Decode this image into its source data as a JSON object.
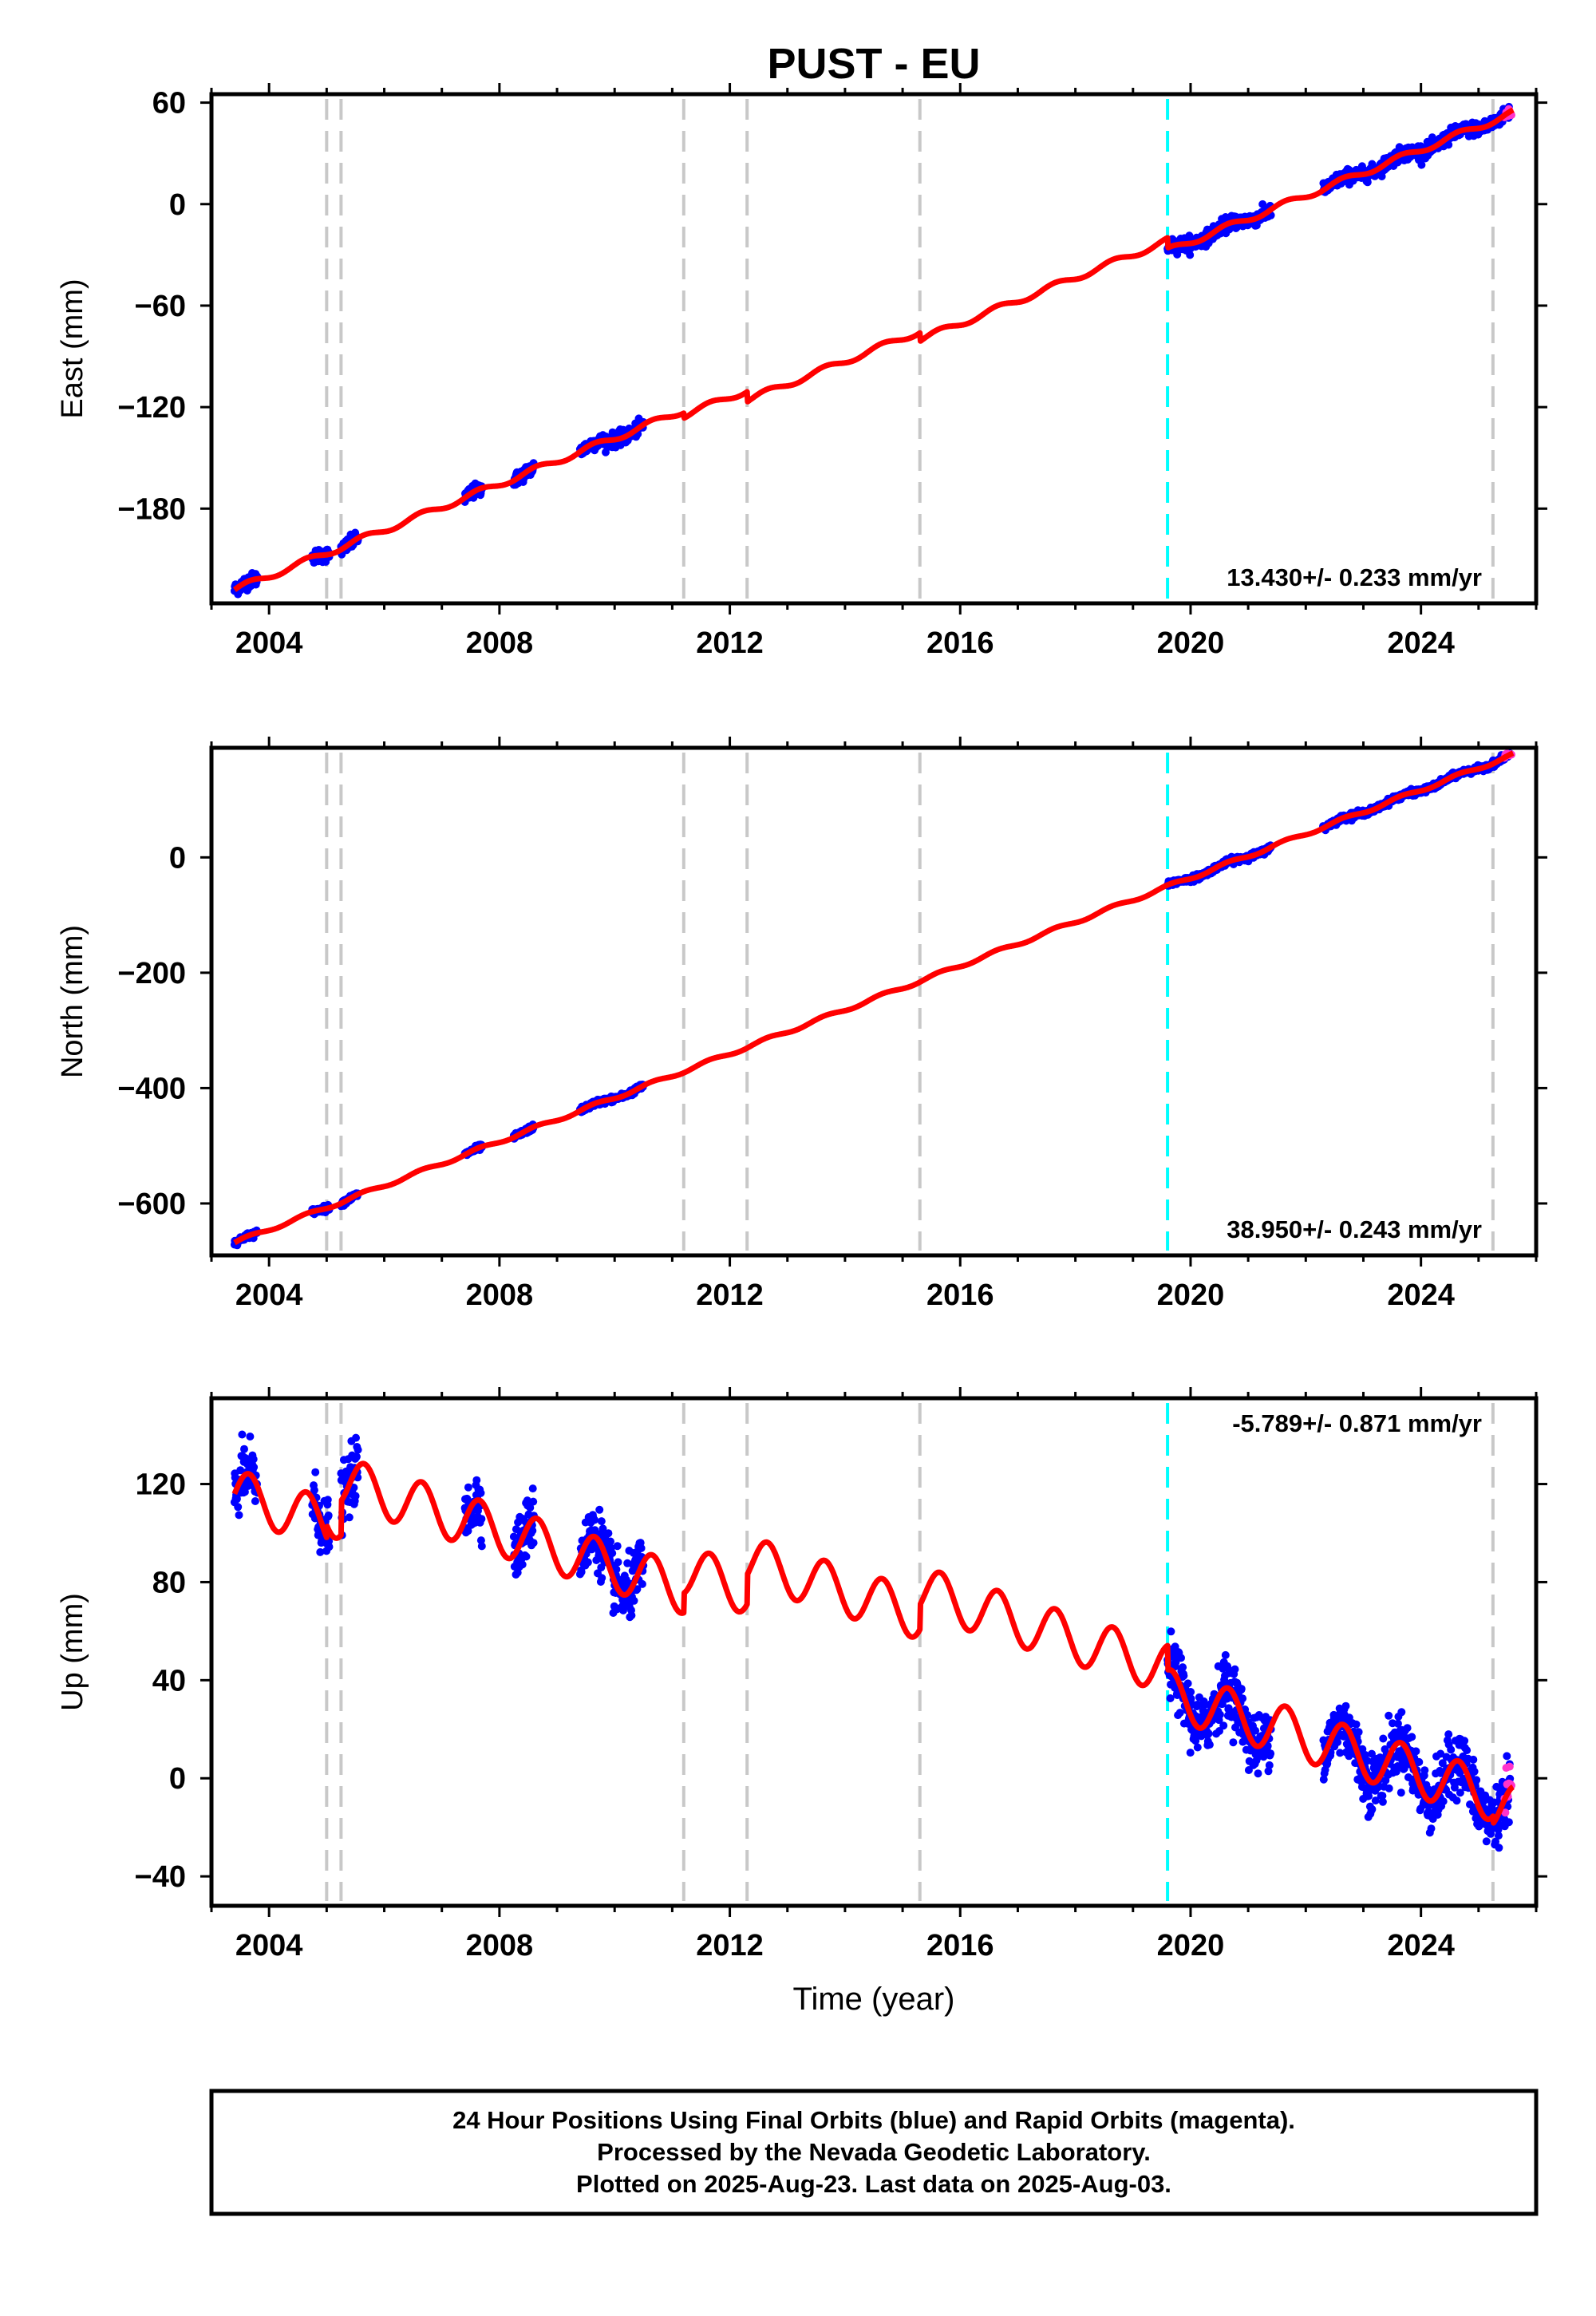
{
  "figure": {
    "title": "PUST - EU",
    "xlabel": "Time (year)",
    "note_lines": [
      "24 Hour Positions Using Final Orbits (blue) and Rapid Orbits (magenta).",
      "Processed by the Nevada Geodetic Laboratory.",
      "Plotted on 2025-Aug-23. Last data on 2025-Aug-03."
    ]
  },
  "colors": {
    "final_orbits": "#0000ff",
    "rapid_orbits": "#ff33cc",
    "model": "#ff0000",
    "equipment_change": "#c8c8c8",
    "antenna_event": "#00ffff"
  },
  "chart_data": [
    {
      "type": "scatter",
      "component": "east",
      "ylabel": "East (mm)",
      "xlim": [
        2003.0,
        2026.0
      ],
      "ylim": [
        -236,
        65
      ],
      "xticks": [
        2004,
        2008,
        2012,
        2016,
        2020,
        2024
      ],
      "xtick_labels": [
        "2004",
        "2008",
        "2012",
        "2016",
        "2020",
        "2024"
      ],
      "yticks": [
        60,
        0,
        -60,
        -120,
        -180
      ],
      "ytick_labels": [
        "60",
        "0",
        "−60",
        "−120",
        "−180"
      ],
      "rate_label": "13.430+/- 0.233 mm/yr",
      "rate_position": "bottom-right",
      "grid": false,
      "data_segments": [
        [
          2003.4,
          2003.8
        ],
        [
          2004.75,
          2005.05
        ],
        [
          2005.25,
          2005.55
        ],
        [
          2007.4,
          2007.7
        ],
        [
          2008.25,
          2008.6
        ],
        [
          2009.4,
          2010.5
        ],
        [
          2019.6,
          2021.4
        ],
        [
          2022.3,
          2025.55
        ]
      ],
      "model_anchors": [
        [
          2003.4,
          -228
        ],
        [
          2025.6,
          54
        ]
      ],
      "offsets": [
        {
          "x": 2011.2,
          "dy": -3
        },
        {
          "x": 2012.3,
          "dy": -6
        },
        {
          "x": 2015.3,
          "dy": -5
        },
        {
          "x": 2019.6,
          "dy": -6
        }
      ],
      "annual_amplitude": 1.8,
      "noise_mm": 2.0,
      "equipment_changes": [
        2005.0,
        2005.25,
        2011.2,
        2012.3,
        2015.3,
        2025.25
      ],
      "antenna_event": 2019.6
    },
    {
      "type": "scatter",
      "component": "north",
      "ylabel": "North (mm)",
      "xlim": [
        2003.0,
        2026.0
      ],
      "ylim": [
        -690,
        190
      ],
      "xticks": [
        2004,
        2008,
        2012,
        2016,
        2020,
        2024
      ],
      "xtick_labels": [
        "2004",
        "2008",
        "2012",
        "2016",
        "2020",
        "2024"
      ],
      "yticks": [
        0,
        -200,
        -400,
        -600
      ],
      "ytick_labels": [
        "0",
        "−200",
        "−400",
        "−600"
      ],
      "rate_label": "38.950+/- 0.243 mm/yr",
      "rate_position": "bottom-right",
      "grid": false,
      "data_segments": [
        [
          2003.4,
          2003.8
        ],
        [
          2004.75,
          2005.05
        ],
        [
          2005.25,
          2005.55
        ],
        [
          2007.4,
          2007.7
        ],
        [
          2008.25,
          2008.6
        ],
        [
          2009.4,
          2010.5
        ],
        [
          2019.6,
          2021.4
        ],
        [
          2022.3,
          2025.55
        ]
      ],
      "model_anchors": [
        [
          2003.4,
          -668
        ],
        [
          2025.6,
          178
        ]
      ],
      "offsets": [],
      "annual_amplitude": 3.0,
      "noise_mm": 2.5,
      "equipment_changes": [
        2005.0,
        2005.25,
        2011.2,
        2012.3,
        2015.3,
        2025.25
      ],
      "antenna_event": 2019.6
    },
    {
      "type": "scatter",
      "component": "up",
      "ylabel": "Up (mm)",
      "xlim": [
        2003.0,
        2026.0
      ],
      "ylim": [
        -52,
        155
      ],
      "xticks": [
        2004,
        2008,
        2012,
        2016,
        2020,
        2024
      ],
      "xtick_labels": [
        "2004",
        "2008",
        "2012",
        "2016",
        "2020",
        "2024"
      ],
      "yticks": [
        120,
        80,
        40,
        0,
        -40
      ],
      "ytick_labels": [
        "120",
        "80",
        "40",
        "0",
        "−40"
      ],
      "rate_label": "-5.789+/- 0.871 mm/yr",
      "rate_position": "top-right",
      "grid": false,
      "data_segments": [
        [
          2003.4,
          2003.8
        ],
        [
          2004.75,
          2005.05
        ],
        [
          2005.25,
          2005.55
        ],
        [
          2007.4,
          2007.7
        ],
        [
          2008.25,
          2008.6
        ],
        [
          2009.4,
          2010.5
        ],
        [
          2019.6,
          2021.4
        ],
        [
          2022.3,
          2025.55
        ]
      ],
      "model_anchors": [
        [
          2003.4,
          116
        ],
        [
          2025.6,
          -13
        ]
      ],
      "offsets": [
        {
          "x": 2005.0,
          "dy": 5
        },
        {
          "x": 2005.25,
          "dy": 14
        },
        {
          "x": 2011.2,
          "dy": 8
        },
        {
          "x": 2012.3,
          "dy": 12
        },
        {
          "x": 2015.3,
          "dy": 10
        },
        {
          "x": 2019.6,
          "dy": -10
        },
        {
          "x": 2025.25,
          "dy": -3
        }
      ],
      "annual_amplitude": 10.0,
      "noise_mm": 6.0,
      "equipment_changes": [
        2005.0,
        2005.25,
        2011.2,
        2012.3,
        2015.3,
        2025.25
      ],
      "antenna_event": 2019.6
    }
  ]
}
